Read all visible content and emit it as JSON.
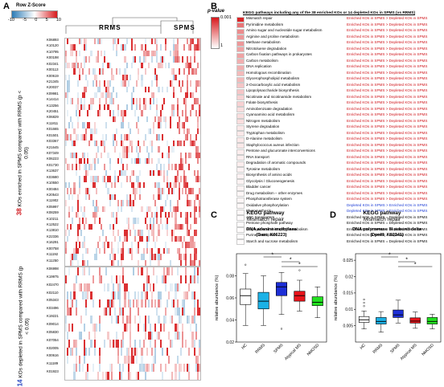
{
  "panels": {
    "a": "A",
    "b": "B",
    "c": "C",
    "d": "D"
  },
  "colorbar_a": {
    "title": "Row Z-Score",
    "ticks": [
      "-10",
      "-5",
      "0",
      "5",
      "10"
    ]
  },
  "colorbar_b": {
    "title": "p-value",
    "ticks": [
      "0.001",
      "1"
    ]
  },
  "heatmap": {
    "col_groups": [
      "RRMS",
      "SPMS"
    ],
    "enriched_ids": [
      "K06893",
      "K10120",
      "K10795",
      "K00198",
      "K02341",
      "K00113",
      "K00619",
      "K21345",
      "K20037",
      "K09981",
      "K14414",
      "K13256",
      "K20451",
      "K06829",
      "K11811",
      "K01665",
      "K01501",
      "K03367",
      "K21645",
      "K07349",
      "K06223",
      "K01730",
      "K13637",
      "K03680",
      "K10550",
      "K00484",
      "K20543",
      "K11902",
      "K05997",
      "K08259",
      "K10211",
      "K12522",
      "K13810",
      "K22336",
      "K16291",
      "K00758",
      "K11192",
      "K11250"
    ],
    "depleted_ids": [
      "K06998",
      "K19975",
      "K02470",
      "K02110",
      "K05343",
      "K03496",
      "K19221",
      "K09014",
      "K05830",
      "K07054",
      "K02005",
      "K00616",
      "K11189",
      "K01923"
    ],
    "enriched_label_count": "38",
    "enriched_label_text": "KOs enriched in SPMS compared with RRMS (p < 0.05)",
    "depleted_label_count": "14",
    "depleted_label_text": "KOs depleted in SPMS compared with RRMS (p < 0.05)",
    "colors": {
      "high": "#d7191c",
      "low": "#2c7bb6",
      "mid": "#ffffff"
    }
  },
  "table_b": {
    "header": "KEGG pathways including any of the 38 enriched KOs or 14 depleted KOs in SPMS (vs RRMS)",
    "rows": [
      {
        "p": "Mismatch repair",
        "s": "Enriched KOs in SPMS > Depleted KOs in SPMS",
        "c": "red",
        "v": 0.95
      },
      {
        "p": "Pyrimidine metabolism",
        "s": "Enriched KOs in SPMS > Depleted KOs in SPMS",
        "c": "red",
        "v": 0.6
      },
      {
        "p": "Amino sugar and nucleotide sugar metabolism",
        "s": "Enriched KOs in SPMS > Depleted KOs in SPMS",
        "c": "red",
        "v": 0.5
      },
      {
        "p": "Arginine and proline metabolism",
        "s": "Enriched KOs in SPMS > Depleted KOs in SPMS",
        "c": "red",
        "v": 0.45
      },
      {
        "p": "Methane metabolism",
        "s": "Enriched KOs in SPMS > Depleted KOs in SPMS",
        "c": "red",
        "v": 0.45
      },
      {
        "p": "Nitrotoluene degradation",
        "s": "Enriched KOs in SPMS > Depleted KOs in SPMS",
        "c": "red",
        "v": 0.4
      },
      {
        "p": "Carbon fixation pathways in prokaryotes",
        "s": "Enriched KOs in SPMS > Depleted KOs in SPMS",
        "c": "red",
        "v": 0.4
      },
      {
        "p": "Carbon metabolism",
        "s": "Enriched KOs in SPMS > Depleted KOs in SPMS",
        "c": "red",
        "v": 0.35
      },
      {
        "p": "DNA replication",
        "s": "Enriched KOs in SPMS > Depleted KOs in SPMS",
        "c": "red",
        "v": 0.35
      },
      {
        "p": "Homologous recombination",
        "s": "Enriched KOs in SPMS > Depleted KOs in SPMS",
        "c": "red",
        "v": 0.3
      },
      {
        "p": "Glycerophospholipid metabolism",
        "s": "Enriched KOs in SPMS > Depleted KOs in SPMS",
        "c": "red",
        "v": 0.3
      },
      {
        "p": "2-Oxocarboxylic acid metabolism",
        "s": "Enriched KOs in SPMS > Depleted KOs in SPMS",
        "c": "red",
        "v": 0.25
      },
      {
        "p": "Lipopolysaccharide biosynthesis",
        "s": "Enriched KOs in SPMS > Depleted KOs in SPMS",
        "c": "red",
        "v": 0.25
      },
      {
        "p": "Nicotinate and nicotinamide metabolism",
        "s": "Enriched KOs in SPMS > Depleted KOs in SPMS",
        "c": "red",
        "v": 0.2
      },
      {
        "p": "Folate biosynthesis",
        "s": "Enriched KOs in SPMS > Depleted KOs in SPMS",
        "c": "red",
        "v": 0.2
      },
      {
        "p": "Aminobenzoate degradation",
        "s": "Enriched KOs in SPMS > Depleted KOs in SPMS",
        "c": "red",
        "v": 0.15
      },
      {
        "p": "Cyanoamino acid metabolism",
        "s": "Enriched KOs in SPMS > Depleted KOs in SPMS",
        "c": "red",
        "v": 0.15
      },
      {
        "p": "Nitrogen metabolism",
        "s": "Enriched KOs in SPMS > Depleted KOs in SPMS",
        "c": "red",
        "v": 0.15
      },
      {
        "p": "Styrene degradation",
        "s": "Enriched KOs in SPMS > Depleted KOs in SPMS",
        "c": "red",
        "v": 0.1
      },
      {
        "p": "Tryptophan metabolism",
        "s": "Enriched KOs in SPMS > Depleted KOs in SPMS",
        "c": "red",
        "v": 0.1
      },
      {
        "p": "D-Alanine metabolism",
        "s": "Enriched KOs in SPMS > Depleted KOs in SPMS",
        "c": "red",
        "v": 0.1
      },
      {
        "p": "Staphylococcus aureus infection",
        "s": "Enriched KOs in SPMS > Depleted KOs in SPMS",
        "c": "red",
        "v": 0.1
      },
      {
        "p": "Pentose and glucuronate interconversions",
        "s": "Enriched KOs in SPMS > Depleted KOs in SPMS",
        "c": "red",
        "v": 0.08
      },
      {
        "p": "RNA transport",
        "s": "Enriched KOs in SPMS > Depleted KOs in SPMS",
        "c": "red",
        "v": 0.08
      },
      {
        "p": "Degradation of aromatic compounds",
        "s": "Enriched KOs in SPMS > Depleted KOs in SPMS",
        "c": "red",
        "v": 0.08
      },
      {
        "p": "Tyrosine metabolism",
        "s": "Enriched KOs in SPMS > Depleted KOs in SPMS",
        "c": "red",
        "v": 0.06
      },
      {
        "p": "Biosynthesis of amino acids",
        "s": "Enriched KOs in SPMS > Depleted KOs in SPMS",
        "c": "red",
        "v": 0.06
      },
      {
        "p": "Glycolysis / Gluconeogenesis",
        "s": "Enriched KOs in SPMS > Depleted KOs in SPMS",
        "c": "red",
        "v": 0.05
      },
      {
        "p": "Bladder cancer",
        "s": "Enriched KOs in SPMS > Depleted KOs in SPMS",
        "c": "red",
        "v": 0.05
      },
      {
        "p": "Drug metabolism – other enzymes",
        "s": "Enriched KOs in SPMS > Depleted KOs in SPMS",
        "c": "red",
        "v": 0.04
      },
      {
        "p": "Phosphotransferase system",
        "s": "Enriched KOs in SPMS > Depleted KOs in SPMS",
        "c": "red",
        "v": 0.04
      },
      {
        "p": "Oxidative phosphorylation",
        "s": "Depleted KOs in SPMS > Enriched KOs in SPMS",
        "c": "blue",
        "v": 0.03
      },
      {
        "p": "Photosynthesis",
        "s": "Depleted KOs in SPMS > Enriched KOs in SPMS",
        "c": "blue",
        "v": 0.03
      },
      {
        "p": "ABC transporters",
        "s": "Enriched KOs in SPMS = Depleted KOs in SPMS",
        "c": "black",
        "v": 0.02
      },
      {
        "p": "Pentose phosphate pathway",
        "s": "Enriched KOs in SPMS = Depleted KOs in SPMS",
        "c": "black",
        "v": 0.02
      },
      {
        "p": "Porphyrin and chlorophyll metabolism",
        "s": "Enriched KOs in SPMS = Depleted KOs in SPMS",
        "c": "black",
        "v": 0.01
      },
      {
        "p": "Purine metabolism",
        "s": "Enriched KOs in SPMS = Depleted KOs in SPMS",
        "c": "black",
        "v": 0.01
      },
      {
        "p": "Starch and sucrose metabolism",
        "s": "Enriched KOs in SPMS = Depleted KOs in SPMS",
        "c": "black",
        "v": 0.01
      }
    ]
  },
  "panel_c": {
    "heading": "KEGG pathway",
    "subheading": "Mismatch repair",
    "enzyme": "DNA adenine methylase",
    "enzyme2": "(Dam; K06223)",
    "chart_data": {
      "type": "box",
      "categories": [
        "HC",
        "RRMS",
        "SPMS",
        "Atypical MS",
        "NMOSD"
      ],
      "ylabel": "relative abundance (%)",
      "ylim": [
        0.02,
        0.1
      ],
      "yticks": [
        0.02,
        0.04,
        0.06,
        0.08
      ],
      "boxes": [
        {
          "name": "HC",
          "min": 0.035,
          "q1": 0.054,
          "med": 0.062,
          "q3": 0.068,
          "max": 0.082,
          "outliers": [
            0.09
          ]
        },
        {
          "name": "RRMS",
          "min": 0.035,
          "q1": 0.05,
          "med": 0.057,
          "q3": 0.065,
          "max": 0.08,
          "outliers": []
        },
        {
          "name": "SPMS",
          "min": 0.045,
          "q1": 0.062,
          "med": 0.07,
          "q3": 0.074,
          "max": 0.083,
          "outliers": [
            0.032
          ]
        },
        {
          "name": "Atypical MS",
          "min": 0.048,
          "q1": 0.057,
          "med": 0.062,
          "q3": 0.066,
          "max": 0.076,
          "outliers": [
            0.085
          ]
        },
        {
          "name": "NMOSD",
          "min": 0.042,
          "q1": 0.053,
          "med": 0.056,
          "q3": 0.061,
          "max": 0.07,
          "outliers": []
        }
      ],
      "colors": [
        "#ffffff",
        "#1bb1e6",
        "#1d2fd6",
        "#e8141b",
        "#22e020"
      ],
      "significance": [
        {
          "from": 1,
          "to": 2,
          "label": "*"
        },
        {
          "from": 2,
          "to": 3,
          "label": "*"
        },
        {
          "from": 2,
          "to": 4,
          "label": "*"
        }
      ]
    }
  },
  "panel_d": {
    "heading": "KEGG pathway",
    "subheading": "Mismatch repair",
    "enzyme": "DNA polymerase III subunit delta",
    "enzyme2": "(DpolII; K02341)",
    "chart_data": {
      "type": "box",
      "categories": [
        "HC",
        "RRMS",
        "SPMS",
        "Atypical MS",
        "NMOSD"
      ],
      "ylabel": "relative abundance (%)",
      "ylim": [
        0,
        0.027
      ],
      "yticks": [
        0.005,
        0.01,
        0.015,
        0.02,
        0.025
      ],
      "boxes": [
        {
          "name": "HC",
          "min": 0.004,
          "q1": 0.006,
          "med": 0.0068,
          "q3": 0.0078,
          "max": 0.0095,
          "outliers": [
            0.011,
            0.012,
            0.013
          ]
        },
        {
          "name": "RRMS",
          "min": 0.003,
          "q1": 0.0055,
          "med": 0.0063,
          "q3": 0.0075,
          "max": 0.0093,
          "outliers": []
        },
        {
          "name": "SPMS",
          "min": 0.0058,
          "q1": 0.0075,
          "med": 0.0083,
          "q3": 0.0098,
          "max": 0.0128,
          "outliers": []
        },
        {
          "name": "Atypical MS",
          "min": 0.0042,
          "q1": 0.0058,
          "med": 0.0064,
          "q3": 0.0074,
          "max": 0.0092,
          "outliers": []
        },
        {
          "name": "NMOSD",
          "min": 0.004,
          "q1": 0.0055,
          "med": 0.0063,
          "q3": 0.0075,
          "max": 0.0085,
          "outliers": []
        }
      ],
      "colors": [
        "#ffffff",
        "#1bb1e6",
        "#1d2fd6",
        "#e8141b",
        "#22e020"
      ],
      "significance": [
        {
          "from": 1,
          "to": 2,
          "label": "*"
        },
        {
          "from": 2,
          "to": 3,
          "label": "*"
        },
        {
          "from": 2,
          "to": 4,
          "label": "*"
        }
      ]
    }
  }
}
